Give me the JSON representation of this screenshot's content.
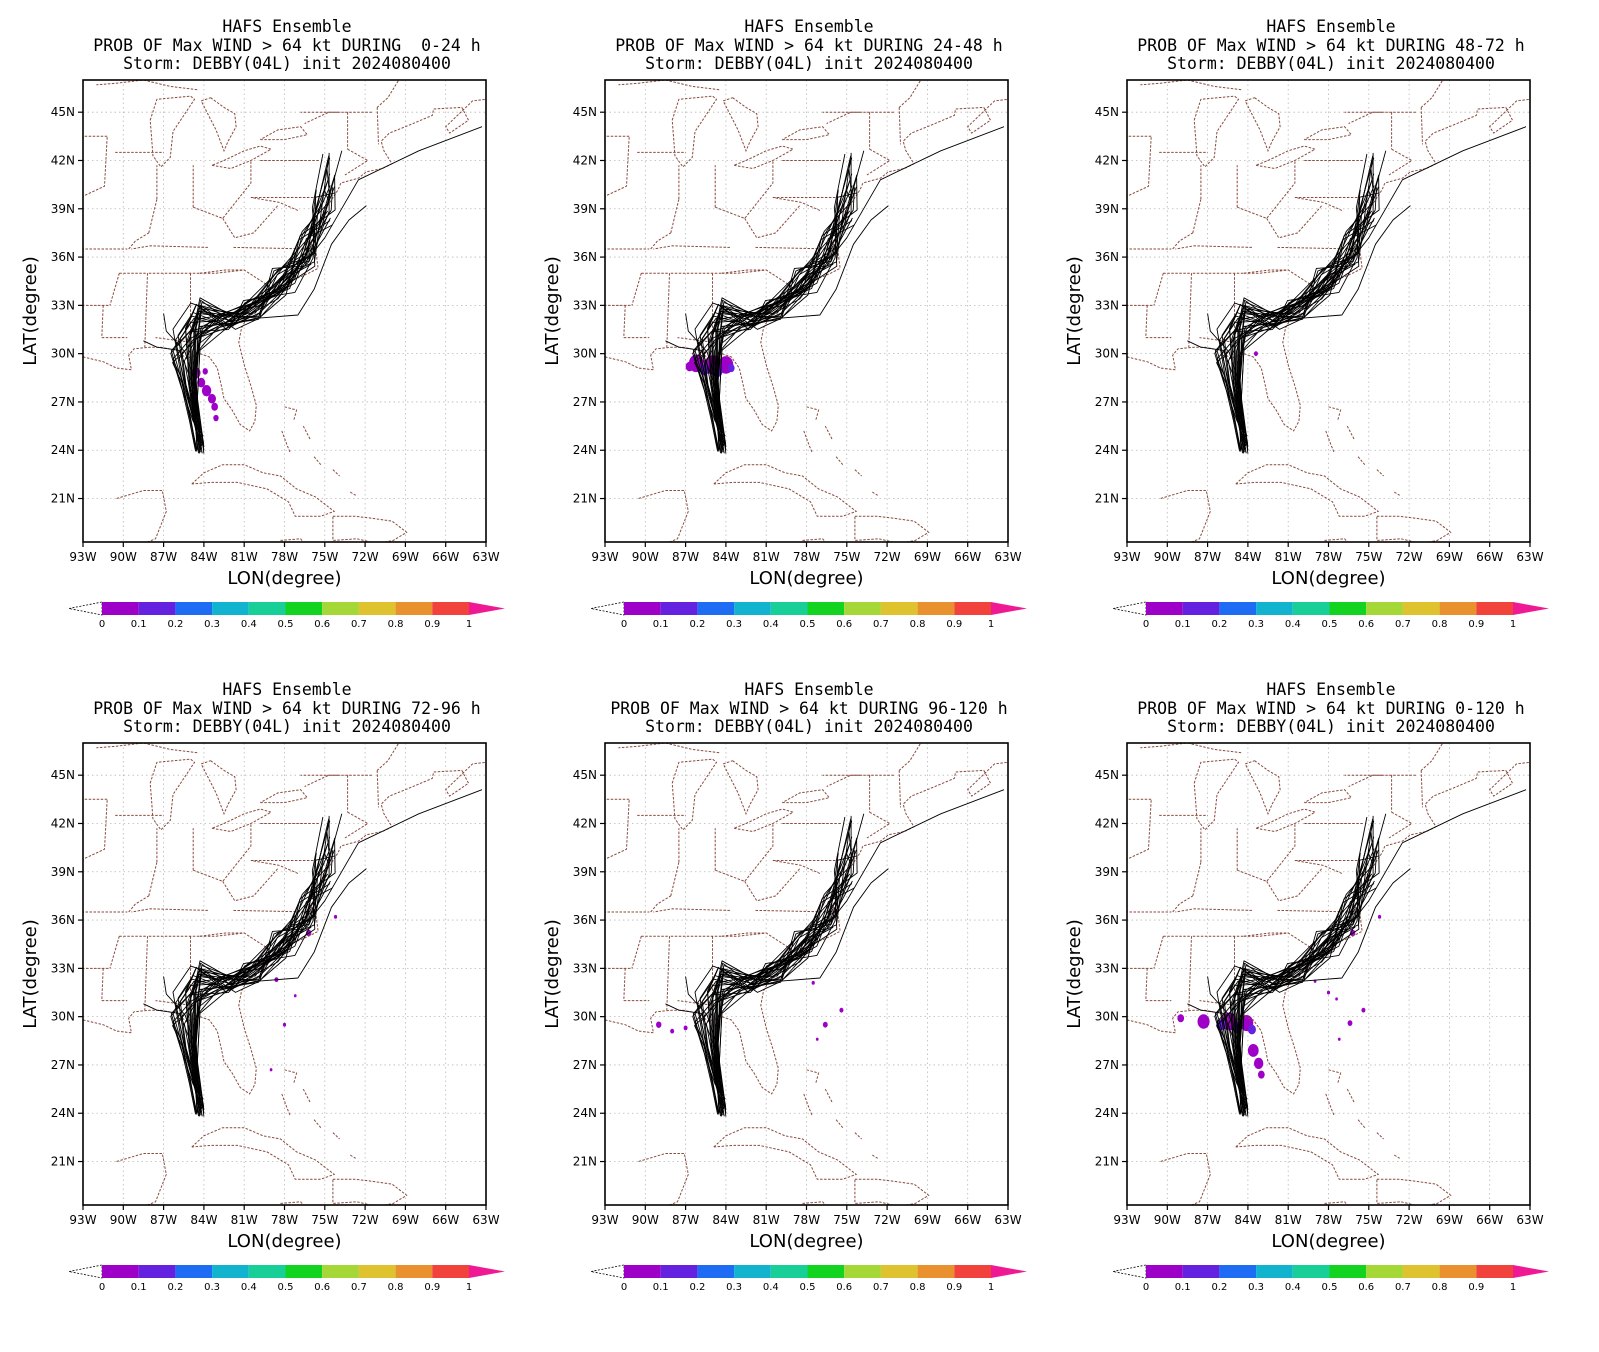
{
  "common": {
    "lat_ticks": [
      "45N",
      "42N",
      "39N",
      "36N",
      "33N",
      "30N",
      "27N",
      "24N",
      "21N"
    ],
    "lon_ticks": [
      "93W",
      "90W",
      "87W",
      "84W",
      "81W",
      "78W",
      "75W",
      "72W",
      "69W",
      "66W",
      "63W"
    ],
    "xlabel": "LON(degree)",
    "ylabel": "LAT(degree)",
    "colorbar_labels": [
      "0",
      "0.1",
      "0.2",
      "0.3",
      "0.4",
      "0.5",
      "0.6",
      "0.7",
      "0.8",
      "0.9",
      "1"
    ],
    "colorbar_colors": [
      "#9d00c7",
      "#6422e0",
      "#1e6cf3",
      "#12b3cf",
      "#19cf98",
      "#12d31f",
      "#a5d837",
      "#dfc32e",
      "#e9912f",
      "#f1423c"
    ],
    "colorbar_over_color": "#ef1a93",
    "border_color": "#8b4a3c",
    "track_color": "#000000"
  },
  "panels": [
    {
      "line1": "HAFS Ensemble",
      "line2": "PROB OF Max WIND > 64 kt DURING  0-24 h",
      "line3": "Storm: DEBBY(04L) init 2024080400"
    },
    {
      "line1": "HAFS Ensemble",
      "line2": "PROB OF Max WIND > 64 kt DURING 24-48 h",
      "line3": "Storm: DEBBY(04L) init 2024080400"
    },
    {
      "line1": "HAFS Ensemble",
      "line2": "PROB OF Max WIND > 64 kt DURING 48-72 h",
      "line3": "Storm: DEBBY(04L) init 2024080400"
    },
    {
      "line1": "HAFS Ensemble",
      "line2": "PROB OF Max WIND > 64 kt DURING 72-96 h",
      "line3": "Storm: DEBBY(04L) init 2024080400"
    },
    {
      "line1": "HAFS Ensemble",
      "line2": "PROB OF Max WIND > 64 kt DURING 96-120 h",
      "line3": "Storm: DEBBY(04L) init 2024080400"
    },
    {
      "line1": "HAFS Ensemble",
      "line2": "PROB OF Max WIND > 64 kt DURING 0-120 h",
      "line3": "Storm: DEBBY(04L) init 2024080400"
    }
  ]
}
